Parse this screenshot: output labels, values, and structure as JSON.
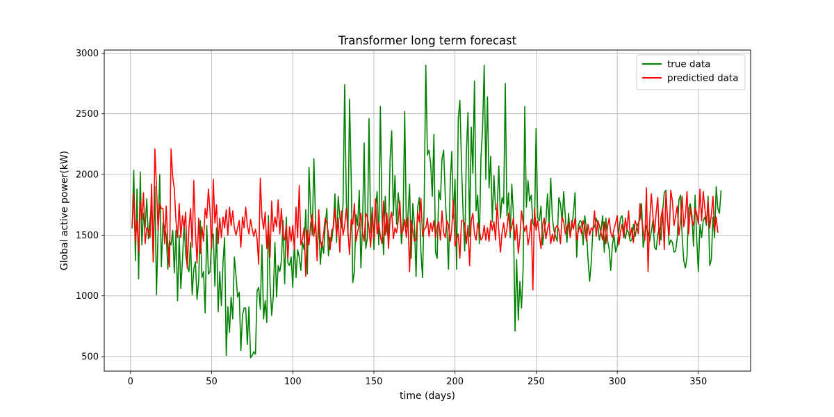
{
  "chart_data": {
    "type": "line",
    "title": "Transformer long term forecast",
    "xlabel": "time (days)",
    "ylabel": "Global active power(kW)",
    "xlim": [
      -16.2,
      382.2
    ],
    "ylim": [
      380,
      3025
    ],
    "xticks": [
      0,
      50,
      100,
      150,
      200,
      250,
      300,
      350
    ],
    "yticks": [
      500,
      1000,
      1500,
      2000,
      2500,
      3000
    ],
    "grid": true,
    "legend_position": "top-right",
    "series": [
      {
        "name": "true data",
        "color": "#008000",
        "values": [
          1555,
          2035,
          1290,
          1880,
          1140,
          2020,
          1420,
          1680,
          1560,
          1800,
          1470,
          1630,
          1740,
          1290,
          1900,
          1010,
          1540,
          2000,
          1240,
          1600,
          1570,
          1500,
          1220,
          1450,
          1420,
          1540,
          1190,
          1540,
          960,
          1500,
          1060,
          1290,
          1590,
          1340,
          1240,
          1200,
          1440,
          1010,
          1220,
          1280,
          970,
          1120,
          1620,
          1150,
          1200,
          860,
          1580,
          1180,
          1200,
          1470,
          1510,
          1080,
          1560,
          870,
          1200,
          920,
          1270,
          1480,
          510,
          910,
          700,
          990,
          810,
          1320,
          1170,
          990,
          1030,
          550,
          840,
          900,
          900,
          600,
          910,
          490,
          510,
          540,
          520,
          1040,
          1070,
          890,
          1420,
          810,
          960,
          780,
          1660,
          1090,
          840,
          1000,
          1440,
          990,
          1250,
          1200,
          1290,
          1620,
          1100,
          1650,
          1270,
          1250,
          1320,
          1070,
          1430,
          1150,
          1380,
          1320,
          1210,
          1440,
          1380,
          1710,
          1180,
          2060,
          1700,
          1500,
          2130,
          1650,
          1310,
          1630,
          1260,
          1440,
          1350,
          1580,
          1720,
          1330,
          1480,
          1450,
          1580,
          1840,
          1440,
          1820,
          1650,
          1560,
          1760,
          2740,
          1790,
          1500,
          2620,
          1980,
          1110,
          1200,
          1670,
          1580,
          1870,
          1230,
          1590,
          2260,
          1390,
          1480,
          2460,
          1520,
          1730,
          1380,
          1710,
          1860,
          1420,
          2560,
          1660,
          1340,
          1820,
          1530,
          1480,
          2130,
          2360,
          1660,
          1990,
          1590,
          1850,
          1700,
          1430,
          1610,
          2520,
          1570,
          1660,
          1920,
          1310,
          1760,
          1580,
          1160,
          1730,
          1810,
          1360,
          1150,
          1760,
          2900,
          2160,
          2200,
          2090,
          1820,
          2330,
          1360,
          1310,
          1870,
          1790,
          2130,
          2200,
          1820,
          1550,
          1220,
          1910,
          2190,
          1640,
          1960,
          1220,
          2460,
          2610,
          2080,
          1680,
          1370,
          2170,
          2510,
          1490,
          2390,
          2010,
          2770,
          1700,
          1830,
          1430,
          2140,
          2380,
          2900,
          1960,
          2640,
          1890,
          2150,
          1610,
          1990,
          1710,
          1720,
          2070,
          1640,
          1810,
          1760,
          2750,
          1660,
          1850,
          1480,
          1920,
          1670,
          710,
          1300,
          800,
          1120,
          900,
          1230,
          2560,
          1730,
          1950,
          1780,
          1830,
          1600,
          1570,
          2380,
          1640,
          1620,
          1740,
          1420,
          1540,
          1610,
          1840,
          1580,
          1970,
          1640,
          1540,
          1490,
          1450,
          1810,
          1760,
          1610,
          1860,
          1650,
          1440,
          1680,
          1500,
          1570,
          1680,
          1850,
          1320,
          1580,
          1620,
          1610,
          1420,
          1660,
          1550,
          1300,
          1120,
          1280,
          1550,
          1570,
          1640,
          1590,
          1460,
          1540,
          1660,
          1360,
          1640,
          1460,
          1390,
          1210,
          1420,
          1500,
          1360,
          1410,
          1530,
          1640,
          1660,
          1540,
          1470,
          1550,
          1520,
          1450,
          1460,
          1590,
          1490,
          1560,
          1600,
          1630,
          1760,
          1400,
          1490,
          1580,
          1520,
          1450,
          1530,
          1620,
          1400,
          1380,
          1510,
          1560,
          1460,
          1700,
          1850,
          1870,
          1630,
          1420,
          1460,
          1440,
          1360,
          1370,
          1480,
          1790,
          1830,
          1490,
          1290,
          1230,
          1320,
          1720,
          1760,
          1670,
          1410,
          1830,
          1460,
          1200,
          1590,
          1480,
          1620,
          1650,
          1580,
          1820,
          1250,
          1300,
          1650,
          1480,
          1900,
          1720,
          1680,
          1870
        ]
      },
      {
        "name": "predictied data",
        "color": "#ff0000",
        "values": [
          1570,
          1840,
          1450,
          1620,
          1360,
          1780,
          1630,
          1850,
          1430,
          1560,
          1540,
          1480,
          1920,
          1280,
          2210,
          1900,
          1540,
          1760,
          1720,
          1720,
          1430,
          1740,
          1420,
          1240,
          2210,
          1980,
          1880,
          1620,
          1480,
          1760,
          1480,
          1660,
          1560,
          1690,
          1230,
          1560,
          1720,
          1400,
          1950,
          1530,
          1270,
          1640,
          1350,
          1570,
          1450,
          1720,
          1640,
          1880,
          1700,
          1390,
          1960,
          1600,
          1750,
          1430,
          1640,
          1480,
          1650,
          1560,
          1710,
          1500,
          1730,
          1580,
          1700,
          1560,
          1500,
          1560,
          1620,
          1400,
          1650,
          1560,
          1730,
          1580,
          1510,
          1630,
          1550,
          1490,
          1550,
          1470,
          1260,
          1970,
          1650,
          1550,
          1690,
          1390,
          1600,
          1320,
          1780,
          1530,
          1650,
          1570,
          1790,
          1510,
          1720,
          1490,
          1460,
          1580,
          1310,
          1570,
          1450,
          1580,
          1380,
          1730,
          1480,
          1910,
          1420,
          1470,
          1560,
          1160,
          1540,
          1420,
          1590,
          1670,
          1490,
          1610,
          1290,
          1710,
          1460,
          1400,
          1510,
          1640,
          1600,
          1510,
          1380,
          1540,
          1560,
          1720,
          1490,
          1640,
          1360,
          1700,
          1500,
          1580,
          1720,
          1540,
          1340,
          1630,
          1590,
          1760,
          1450,
          1530,
          1590,
          1680,
          1520,
          1450,
          1680,
          1650,
          1560,
          1400,
          1690,
          1470,
          1800,
          1510,
          1600,
          1490,
          1430,
          1780,
          1500,
          1680,
          1390,
          1640,
          1690,
          1470,
          1560,
          1520,
          1620,
          1780,
          1510,
          1540,
          1630,
          1480,
          1650,
          1200,
          1620,
          1540,
          1450,
          1460,
          1690,
          1610,
          1800,
          1490,
          1550,
          1560,
          1640,
          1490,
          1600,
          1530,
          1620,
          1480,
          1570,
          1610,
          1460,
          1700,
          1520,
          1480,
          1620,
          1580,
          1450,
          1550,
          1790,
          1410,
          1470,
          1510,
          1310,
          1620,
          1620,
          1590,
          1430,
          1580,
          1250,
          1620,
          1680,
          1510,
          1460,
          1600,
          1540,
          1460,
          1480,
          1580,
          1460,
          1560,
          1450,
          1620,
          1540,
          1610,
          1460,
          1760,
          1540,
          1360,
          1520,
          1600,
          1480,
          1550,
          1680,
          1530,
          1570,
          1640,
          1460,
          1590,
          1350,
          1480,
          1700,
          1600,
          1530,
          1580,
          1420,
          1500,
          1630,
          1050,
          1720,
          1540,
          1620,
          1500,
          1390,
          1580,
          1640,
          1470,
          1550,
          1600,
          1430,
          1510,
          1450,
          1560,
          1580,
          1540,
          1430,
          1650,
          1610,
          1510,
          1560,
          1600,
          1480,
          1620,
          1550,
          1640,
          1460,
          1530,
          1580,
          1510,
          1620,
          1570,
          1450,
          1590,
          1500,
          1560,
          1540,
          1700,
          1490,
          1620,
          1580,
          1520,
          1460,
          1610,
          1430,
          1570,
          1640,
          1520,
          1480,
          1550,
          1600,
          1660,
          1420,
          1530,
          1590,
          1480,
          1640,
          1550,
          1700,
          1490,
          1560,
          1440,
          1620,
          1580,
          1510,
          1760,
          1640,
          1540,
          1460,
          1890,
          1200,
          1620,
          1840,
          1660,
          1520,
          1690,
          1810,
          1420,
          1650,
          1720,
          1380,
          1860,
          1620,
          1500,
          1870,
          1780,
          1580,
          1660,
          1740,
          1500,
          1610,
          1820,
          1570,
          1650,
          1860,
          1510,
          1730,
          1620,
          1580,
          1720,
          1680,
          1590,
          1880,
          1620,
          1860,
          1720,
          1600,
          1780,
          1560,
          1670,
          1820,
          1540,
          1650,
          1520
        ]
      }
    ]
  }
}
